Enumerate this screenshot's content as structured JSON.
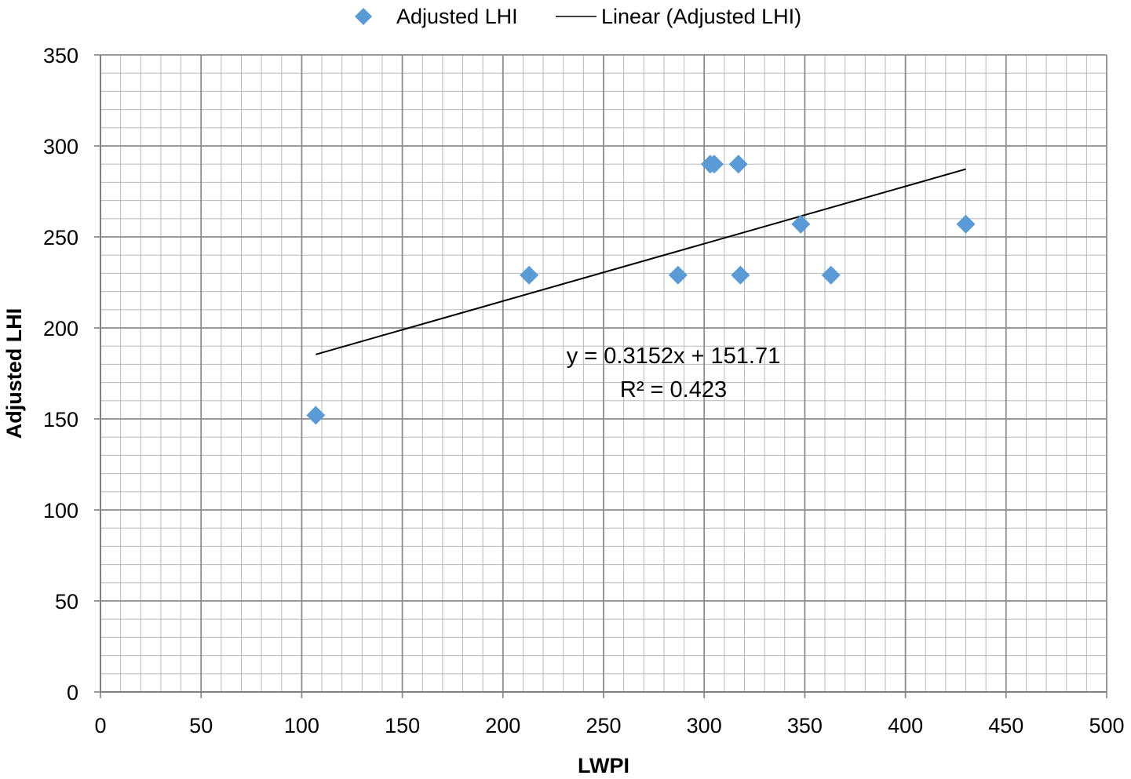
{
  "chart_data": {
    "type": "scatter",
    "title": "",
    "xlabel": "LWPI",
    "ylabel": "Adjusted LHI",
    "xlim": [
      0,
      500
    ],
    "ylim": [
      0,
      350
    ],
    "x_major_step": 50,
    "y_major_step": 50,
    "x_minor_step": 10,
    "y_minor_step": 10,
    "x_ticks": [
      "0",
      "50",
      "100",
      "150",
      "200",
      "250",
      "300",
      "350",
      "400",
      "450",
      "500"
    ],
    "y_ticks": [
      "0",
      "50",
      "100",
      "150",
      "200",
      "250",
      "300",
      "350"
    ],
    "grid": true,
    "legend_position": "top",
    "series": [
      {
        "name": "Adjusted LHI",
        "marker": "diamond",
        "color": "#5B9BD5",
        "points": [
          {
            "x": 107,
            "y": 152
          },
          {
            "x": 213,
            "y": 229
          },
          {
            "x": 287,
            "y": 229
          },
          {
            "x": 303,
            "y": 290
          },
          {
            "x": 305,
            "y": 290
          },
          {
            "x": 317,
            "y": 290
          },
          {
            "x": 318,
            "y": 229
          },
          {
            "x": 348,
            "y": 257
          },
          {
            "x": 363,
            "y": 229
          },
          {
            "x": 430,
            "y": 257
          }
        ]
      }
    ],
    "trendline": {
      "name": "Linear (Adjusted LHI)",
      "color": "#000000",
      "slope": 0.3152,
      "intercept": 151.71,
      "x_range": [
        107,
        430
      ],
      "equation": "y = 0.3152x + 151.71",
      "r_squared": "R² = 0.423"
    }
  }
}
